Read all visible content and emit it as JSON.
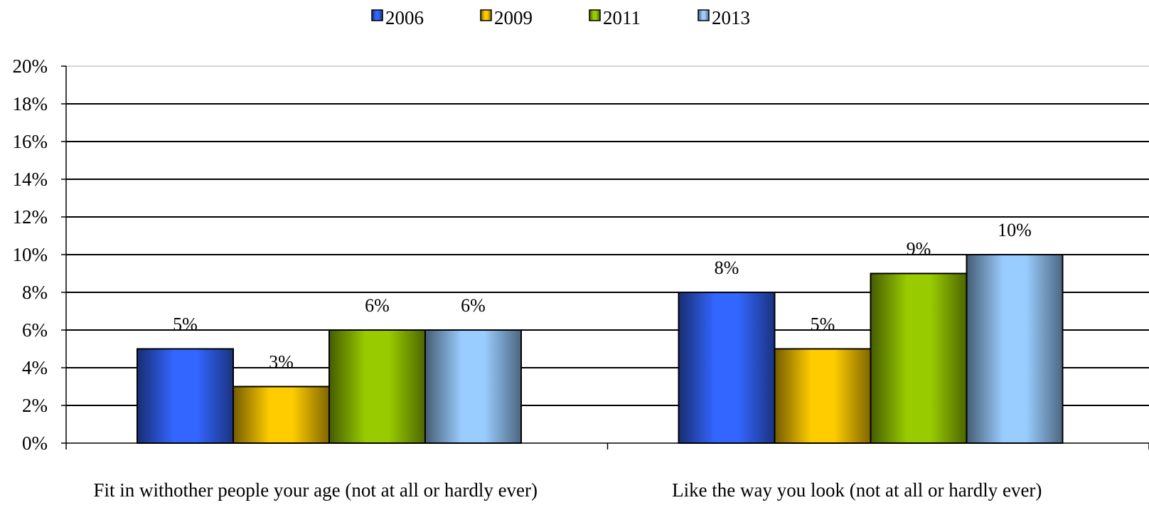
{
  "chart_data": {
    "type": "bar",
    "title": "",
    "xlabel": "",
    "ylabel": "",
    "categories": [
      "Fit in withother people your age (not at all or hardly ever)",
      "Like the way you look (not at all or hardly ever)"
    ],
    "series": [
      {
        "name": "2006",
        "values": [
          5,
          8
        ],
        "color": "#3366ff"
      },
      {
        "name": "2009",
        "values": [
          3,
          5
        ],
        "color": "#ffcc00"
      },
      {
        "name": "2011",
        "values": [
          6,
          9
        ],
        "color": "#99cc00"
      },
      {
        "name": "2013",
        "values": [
          6,
          10
        ],
        "color": "#99ccff"
      }
    ],
    "ylim": [
      0,
      20
    ],
    "yticks": [
      0,
      2,
      4,
      6,
      8,
      10,
      12,
      14,
      16,
      18,
      20
    ],
    "value_suffix": "%",
    "grid": true,
    "legend": "top-center"
  }
}
